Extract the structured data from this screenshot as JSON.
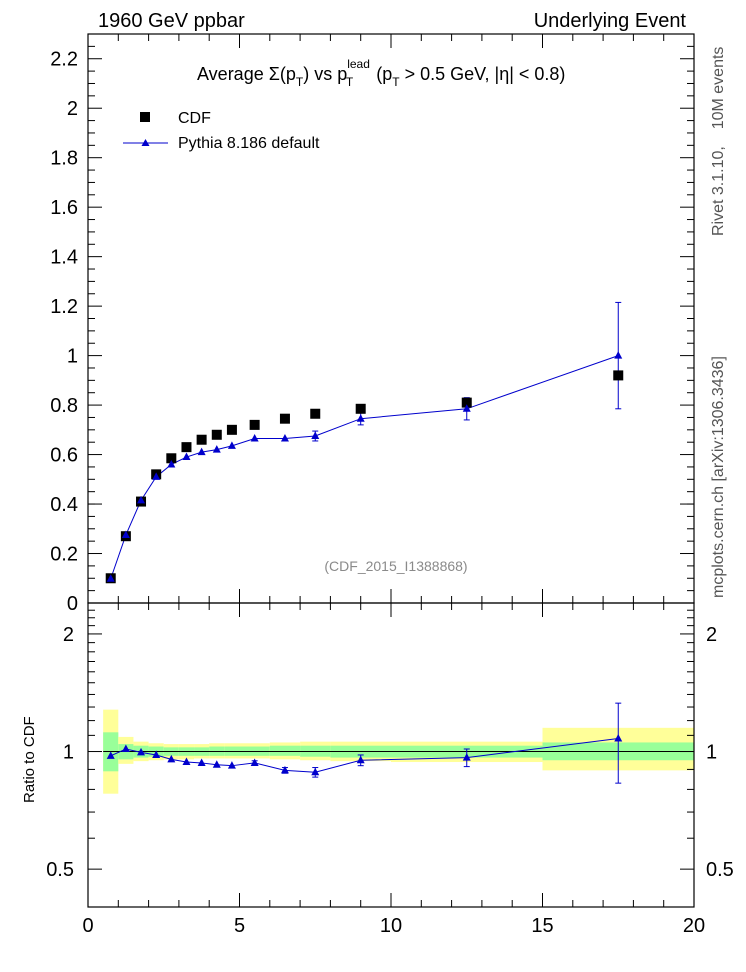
{
  "header": {
    "left": "1960 GeV ppbar",
    "right": "Underlying Event"
  },
  "side_labels": {
    "top": "Rivet 3.1.10,   10M events",
    "bottom": "mcplots.cern.ch [arXiv:1306.3436]"
  },
  "chart_data": [
    {
      "type": "scatter",
      "title": "Average Σ(p_T) vs p_T^lead (p_T > 0.5 GeV, |η| < 0.8)",
      "title_parts": {
        "a": "Average ",
        "b": "Σ(p",
        "c": "T",
        "d": ") vs p",
        "e": "lead",
        "f": "T",
        "g": " (p",
        "h": "T",
        "i": " > 0.5 GeV, |η| < 0.8)"
      },
      "watermark": "(CDF_2015_I1388868)",
      "xlim": [
        0,
        20
      ],
      "ylim": [
        0,
        2.3
      ],
      "yticks": [
        0,
        0.2,
        0.4,
        0.6,
        0.8,
        1.0,
        1.2,
        1.4,
        1.6,
        1.8,
        2.0,
        2.2
      ],
      "ytick_labels": [
        "0",
        "0.2",
        "0.4",
        "0.6",
        "0.8",
        "1",
        "1.2",
        "1.4",
        "1.6",
        "1.8",
        "2",
        "2.2"
      ],
      "legend": [
        "CDF",
        "Pythia 8.186 default"
      ],
      "series": [
        {
          "name": "CDF",
          "marker": "square",
          "color": "#000000",
          "x": [
            0.75,
            1.25,
            1.75,
            2.25,
            2.75,
            3.25,
            3.75,
            4.25,
            4.75,
            5.5,
            6.5,
            7.5,
            9.0,
            12.5,
            17.5
          ],
          "y": [
            0.1,
            0.27,
            0.41,
            0.52,
            0.585,
            0.63,
            0.66,
            0.68,
            0.7,
            0.72,
            0.745,
            0.765,
            0.785,
            0.81,
            0.92
          ]
        },
        {
          "name": "Pythia 8.186 default",
          "marker": "triangle",
          "color": "#0000cc",
          "x": [
            0.75,
            1.25,
            1.75,
            2.25,
            2.75,
            3.25,
            3.75,
            4.25,
            4.75,
            5.5,
            6.5,
            7.5,
            9.0,
            12.5,
            17.5
          ],
          "y": [
            0.098,
            0.275,
            0.415,
            0.51,
            0.56,
            0.59,
            0.61,
            0.62,
            0.635,
            0.665,
            0.665,
            0.675,
            0.745,
            0.785,
            1.0
          ],
          "yerr": [
            0.004,
            0.005,
            0.005,
            0.006,
            0.006,
            0.007,
            0.007,
            0.008,
            0.008,
            0.01,
            0.012,
            0.02,
            0.025,
            0.045,
            0.215
          ]
        }
      ]
    },
    {
      "type": "scatter",
      "ylabel": "Ratio to CDF",
      "xlim": [
        0,
        20
      ],
      "ylim": [
        0.4,
        2.4
      ],
      "yscale": "log",
      "yticks": [
        0.5,
        1,
        2
      ],
      "ytick_labels": [
        "0.5",
        "1",
        "2"
      ],
      "xticks": [
        0,
        5,
        10,
        15,
        20
      ],
      "xtick_labels": [
        "0",
        "5",
        "10",
        "15",
        "20"
      ],
      "bands": {
        "edges": [
          0.5,
          1.0,
          1.5,
          2.0,
          2.5,
          3.0,
          3.5,
          4.0,
          4.5,
          5.0,
          6.0,
          7.0,
          8.0,
          10.0,
          15.0,
          20.0
        ],
        "inner_lo": [
          0.89,
          0.955,
          0.965,
          0.97,
          0.975,
          0.975,
          0.975,
          0.975,
          0.975,
          0.975,
          0.975,
          0.97,
          0.965,
          0.965,
          0.95
        ],
        "inner_hi": [
          1.12,
          1.045,
          1.035,
          1.03,
          1.025,
          1.025,
          1.025,
          1.03,
          1.03,
          1.03,
          1.035,
          1.035,
          1.035,
          1.035,
          1.055
        ],
        "outer_lo": [
          0.78,
          0.93,
          0.945,
          0.95,
          0.955,
          0.955,
          0.96,
          0.96,
          0.96,
          0.96,
          0.955,
          0.95,
          0.945,
          0.94,
          0.895
        ],
        "outer_hi": [
          1.28,
          1.09,
          1.06,
          1.05,
          1.045,
          1.045,
          1.045,
          1.05,
          1.05,
          1.05,
          1.055,
          1.06,
          1.06,
          1.06,
          1.15
        ],
        "inner_color": "#99ff99",
        "outer_color": "#ffff99"
      },
      "series": [
        {
          "name": "Pythia 8.186 default",
          "marker": "triangle",
          "color": "#0000cc",
          "x": [
            0.75,
            1.25,
            1.75,
            2.25,
            2.75,
            3.25,
            3.75,
            4.25,
            4.75,
            5.5,
            6.5,
            7.5,
            9.0,
            12.5,
            17.5
          ],
          "y": [
            0.975,
            1.015,
            0.995,
            0.98,
            0.955,
            0.94,
            0.935,
            0.925,
            0.92,
            0.935,
            0.895,
            0.885,
            0.95,
            0.965,
            1.08
          ],
          "yerr": [
            0.01,
            0.01,
            0.01,
            0.01,
            0.01,
            0.01,
            0.01,
            0.01,
            0.01,
            0.012,
            0.015,
            0.025,
            0.03,
            0.05,
            0.25
          ]
        }
      ]
    }
  ]
}
